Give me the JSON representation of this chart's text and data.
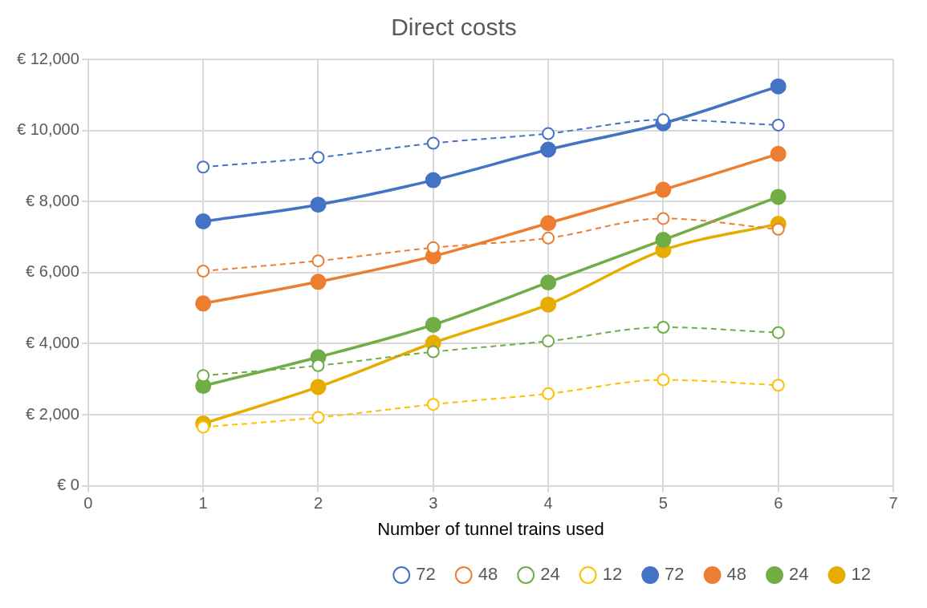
{
  "chart_data": {
    "type": "line",
    "title": "Direct costs",
    "xlabel": "Number of tunnel trains used",
    "x": [
      1,
      2,
      3,
      4,
      5,
      6
    ],
    "xlim": [
      0,
      7
    ],
    "xticks": [
      0,
      1,
      2,
      3,
      4,
      5,
      6,
      7
    ],
    "ylim": [
      0,
      12000
    ],
    "yticks": [
      {
        "value": 0,
        "label": "€ 0"
      },
      {
        "value": 2000,
        "label": "€ 2,000"
      },
      {
        "value": 4000,
        "label": "€ 4,000"
      },
      {
        "value": 6000,
        "label": "€ 6,000"
      },
      {
        "value": 8000,
        "label": "€ 8,000"
      },
      {
        "value": 10000,
        "label": "€ 10,000"
      },
      {
        "value": 12000,
        "label": "€ 12,000"
      }
    ],
    "grid": true,
    "legend": "bottom",
    "marker": "circle",
    "series": [
      {
        "name": "72",
        "color": "#4472c4",
        "line_style": "dashed",
        "values": [
          8970,
          9240,
          9640,
          9910,
          10300,
          10150
        ]
      },
      {
        "name": "48",
        "color": "#ed7d31",
        "line_style": "dashed",
        "values": [
          6040,
          6330,
          6700,
          6970,
          7520,
          7220
        ]
      },
      {
        "name": "24",
        "color": "#70ad47",
        "line_style": "dashed",
        "values": [
          3100,
          3380,
          3770,
          4070,
          4460,
          4310
        ]
      },
      {
        "name": "12",
        "color": "#ffc000",
        "line_style": "dashed",
        "values": [
          1650,
          1920,
          2290,
          2590,
          2980,
          2830
        ]
      },
      {
        "name": "72",
        "color": "#4472c4",
        "line_style": "solid",
        "values": [
          7440,
          7910,
          8600,
          9460,
          10200,
          11240
        ]
      },
      {
        "name": "48",
        "color": "#ed7d31",
        "line_style": "solid",
        "values": [
          5130,
          5740,
          6460,
          7390,
          8330,
          9340
        ]
      },
      {
        "name": "24",
        "color": "#70ad47",
        "line_style": "solid",
        "values": [
          2810,
          3620,
          4530,
          5720,
          6920,
          8130
        ]
      },
      {
        "name": "12",
        "color": "#e6ac00",
        "line_style": "solid",
        "values": [
          1750,
          2780,
          4020,
          5100,
          6630,
          7370
        ]
      }
    ]
  }
}
